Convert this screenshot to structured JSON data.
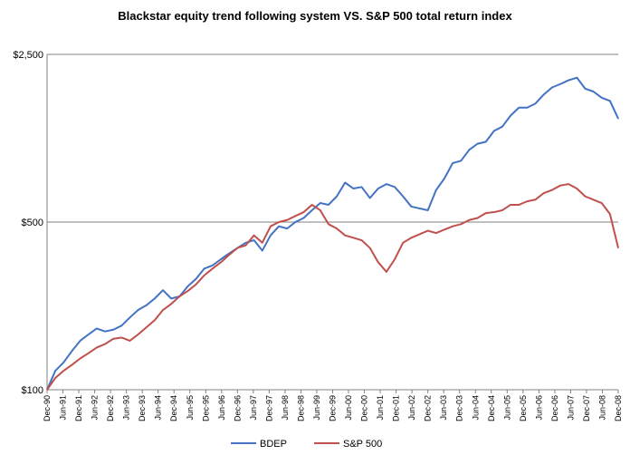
{
  "chart_data": {
    "type": "line",
    "title": "Blackstar equity trend following system VS. S&P 500 total return index",
    "xlabel": "",
    "ylabel": "",
    "y_scale": "log",
    "ylim": [
      100,
      2500
    ],
    "grid": "major horizontal lines at labeled ticks",
    "legend_position": "bottom",
    "y_ticks": [
      {
        "value": 100,
        "label": "$100"
      },
      {
        "value": 500,
        "label": "$500"
      },
      {
        "value": 2500,
        "label": "$2,500"
      }
    ],
    "x_tick_labels": [
      "Dec-90",
      "Jun-91",
      "Dec-91",
      "Jun-92",
      "Dec-92",
      "Jun-93",
      "Dec-93",
      "Jun-94",
      "Dec-94",
      "Jun-95",
      "Dec-95",
      "Jun-96",
      "Dec-96",
      "Jun-97",
      "Dec-97",
      "Jun-98",
      "Dec-98",
      "Jun-99",
      "Dec-99",
      "Jun-00",
      "Dec-00",
      "Jun-01",
      "Dec-01",
      "Jun-02",
      "Dec-02",
      "Jun-03",
      "Dec-03",
      "Jun-04",
      "Dec-04",
      "Jun-05",
      "Dec-05",
      "Jun-06",
      "Dec-06",
      "Jun-07",
      "Dec-07",
      "Jun-08",
      "Dec-08"
    ],
    "series": [
      {
        "name": "BDEP",
        "color": "#4472C4",
        "values": [
          100,
          120,
          130,
          145,
          160,
          170,
          180,
          175,
          178,
          185,
          200,
          215,
          225,
          240,
          260,
          240,
          245,
          270,
          290,
          320,
          330,
          350,
          370,
          390,
          410,
          420,
          380,
          440,
          480,
          470,
          500,
          520,
          560,
          600,
          590,
          640,
          730,
          690,
          700,
          630,
          690,
          720,
          700,
          640,
          580,
          570,
          560,
          680,
          760,
          880,
          900,
          1000,
          1060,
          1080,
          1200,
          1250,
          1390,
          1500,
          1500,
          1560,
          1700,
          1820,
          1880,
          1950,
          2000,
          1800,
          1750,
          1650,
          1600,
          1350
        ]
      },
      {
        "name": "S&P 500",
        "color": "#C0504D",
        "values": [
          100,
          112,
          120,
          127,
          135,
          142,
          150,
          155,
          163,
          165,
          160,
          170,
          182,
          195,
          215,
          228,
          245,
          258,
          275,
          300,
          320,
          340,
          365,
          390,
          400,
          440,
          410,
          480,
          500,
          510,
          530,
          550,
          590,
          560,
          490,
          470,
          440,
          430,
          420,
          390,
          340,
          310,
          350,
          410,
          430,
          445,
          460,
          450,
          465,
          480,
          490,
          510,
          520,
          545,
          550,
          560,
          590,
          590,
          610,
          620,
          660,
          680,
          710,
          720,
          690,
          640,
          620,
          600,
          540,
          390
        ]
      }
    ]
  }
}
